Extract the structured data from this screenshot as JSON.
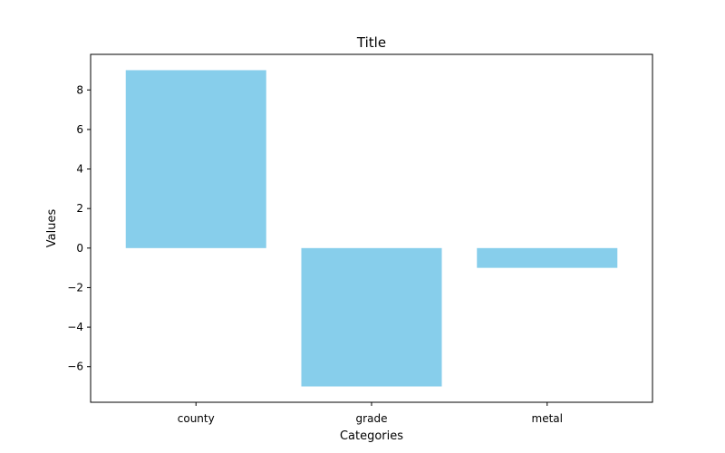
{
  "chart_data": {
    "type": "bar",
    "title": "Title",
    "xlabel": "Categories",
    "ylabel": "Values",
    "categories": [
      "county",
      "grade",
      "metal"
    ],
    "values": [
      9,
      -7,
      -1
    ],
    "ylim": [
      -7.8,
      9.8
    ],
    "yticks": [
      -6,
      -4,
      -2,
      0,
      2,
      4,
      6,
      8
    ],
    "ytick_labels": [
      "−6",
      "−4",
      "−2",
      "0",
      "2",
      "4",
      "6",
      "8"
    ],
    "bar_color": "#87ceeb",
    "grid": false,
    "legend": "none"
  }
}
